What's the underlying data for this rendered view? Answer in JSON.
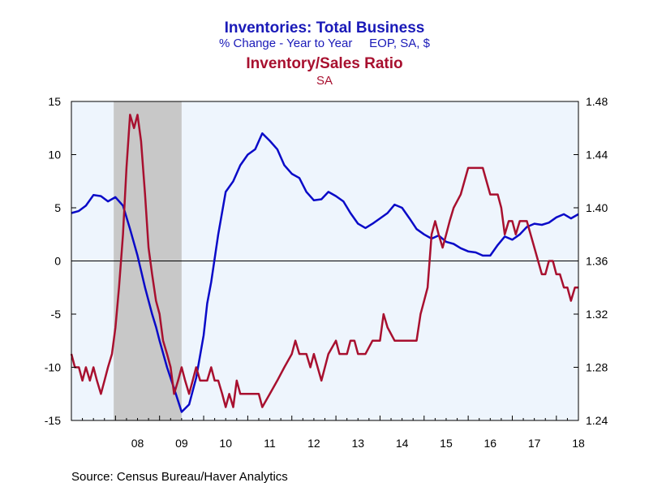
{
  "chart_data": {
    "type": "line",
    "titles": [
      {
        "text": "Inventories: Total Business",
        "color": "#1a1ab8"
      },
      {
        "text": "% Change - Year to Year     EOP, SA, $",
        "color": "#1a1ab8"
      },
      {
        "text": "Inventory/Sales Ratio",
        "color": "#a8102f"
      },
      {
        "text": "SA",
        "color": "#a8102f"
      }
    ],
    "source": "Source:  Census Bureau/Haver Analytics",
    "x_range": [
      2007.0,
      2018.5
    ],
    "x_tick_labels": [
      "08",
      "09",
      "10",
      "11",
      "12",
      "13",
      "14",
      "15",
      "16",
      "17",
      "18"
    ],
    "x_tick_positions": [
      2008.5,
      2009.5,
      2010.5,
      2011.5,
      2012.5,
      2013.5,
      2014.5,
      2015.5,
      2016.5,
      2017.5,
      2018.5
    ],
    "y_left": {
      "min": -15,
      "max": 15,
      "ticks": [
        -15,
        -10,
        -5,
        0,
        5,
        10,
        15
      ],
      "labels": [
        "-15",
        "-10",
        "-5",
        "0",
        "5",
        "10",
        "15"
      ]
    },
    "y_right": {
      "min": 1.24,
      "max": 1.48,
      "ticks": [
        1.24,
        1.28,
        1.32,
        1.36,
        1.4,
        1.44,
        1.48
      ],
      "labels": [
        "1.24",
        "1.28",
        "1.32",
        "1.36",
        "1.40",
        "1.44",
        "1.48"
      ]
    },
    "recession": {
      "start": 2007.96,
      "end": 2009.5,
      "color": "#c8c8c8"
    },
    "plot_bg": "#eef5fd",
    "zero_line": 0,
    "series": [
      {
        "name": "Inventories: Total Business",
        "axis": "left",
        "color": "#0a0ac8",
        "x": [
          2007.0,
          2007.17,
          2007.33,
          2007.5,
          2007.67,
          2007.83,
          2008.0,
          2008.17,
          2008.33,
          2008.5,
          2008.67,
          2008.83,
          2008.92,
          2009.0,
          2009.17,
          2009.33,
          2009.5,
          2009.67,
          2009.83,
          2010.0,
          2010.08,
          2010.17,
          2010.33,
          2010.5,
          2010.67,
          2010.83,
          2011.0,
          2011.17,
          2011.33,
          2011.5,
          2011.67,
          2011.83,
          2012.0,
          2012.17,
          2012.33,
          2012.5,
          2012.67,
          2012.83,
          2013.0,
          2013.17,
          2013.33,
          2013.5,
          2013.67,
          2013.83,
          2014.0,
          2014.17,
          2014.33,
          2014.5,
          2014.67,
          2014.83,
          2015.0,
          2015.17,
          2015.33,
          2015.5,
          2015.67,
          2015.83,
          2016.0,
          2016.17,
          2016.33,
          2016.5,
          2016.67,
          2016.83,
          2017.0,
          2017.17,
          2017.33,
          2017.5,
          2017.67,
          2017.83,
          2018.0,
          2018.17,
          2018.33,
          2018.5
        ],
        "values": [
          4.5,
          4.7,
          5.2,
          6.2,
          6.1,
          5.6,
          6.0,
          5.2,
          3.0,
          0.5,
          -2.5,
          -5.0,
          -6.2,
          -7.5,
          -10.0,
          -12.0,
          -14.2,
          -13.5,
          -11.0,
          -7.0,
          -4.0,
          -2.0,
          2.5,
          6.5,
          7.5,
          9.0,
          10.0,
          10.5,
          12.0,
          11.3,
          10.5,
          9.0,
          8.2,
          7.8,
          6.5,
          5.7,
          5.8,
          6.5,
          6.1,
          5.6,
          4.5,
          3.5,
          3.1,
          3.5,
          4.0,
          4.5,
          5.3,
          5.0,
          4.0,
          3.0,
          2.5,
          2.1,
          2.4,
          1.8,
          1.6,
          1.2,
          0.9,
          0.8,
          0.5,
          0.5,
          1.5,
          2.3,
          2.0,
          2.5,
          3.2,
          3.5,
          3.4,
          3.6,
          4.1,
          4.4,
          4.0,
          4.4
        ]
      },
      {
        "name": "Inventory/Sales Ratio",
        "axis": "right",
        "color": "#a8102f",
        "x": [
          2007.0,
          2007.08,
          2007.17,
          2007.25,
          2007.33,
          2007.42,
          2007.5,
          2007.58,
          2007.67,
          2007.75,
          2007.83,
          2007.92,
          2008.0,
          2008.08,
          2008.17,
          2008.25,
          2008.33,
          2008.42,
          2008.5,
          2008.58,
          2008.67,
          2008.75,
          2008.83,
          2008.92,
          2009.0,
          2009.08,
          2009.17,
          2009.25,
          2009.33,
          2009.42,
          2009.5,
          2009.58,
          2009.67,
          2009.75,
          2009.83,
          2009.92,
          2010.0,
          2010.08,
          2010.17,
          2010.25,
          2010.33,
          2010.42,
          2010.5,
          2010.58,
          2010.67,
          2010.75,
          2010.83,
          2010.92,
          2011.0,
          2011.08,
          2011.17,
          2011.25,
          2011.33,
          2011.5,
          2011.67,
          2011.83,
          2012.0,
          2012.08,
          2012.17,
          2012.25,
          2012.33,
          2012.42,
          2012.5,
          2012.67,
          2012.83,
          2013.0,
          2013.08,
          2013.17,
          2013.25,
          2013.33,
          2013.42,
          2013.5,
          2013.67,
          2013.83,
          2014.0,
          2014.08,
          2014.17,
          2014.33,
          2014.5,
          2014.67,
          2014.83,
          2014.92,
          2015.0,
          2015.08,
          2015.17,
          2015.25,
          2015.33,
          2015.42,
          2015.5,
          2015.58,
          2015.67,
          2015.83,
          2016.0,
          2016.17,
          2016.33,
          2016.5,
          2016.58,
          2016.67,
          2016.75,
          2016.83,
          2016.92,
          2017.0,
          2017.08,
          2017.17,
          2017.33,
          2017.5,
          2017.67,
          2017.75,
          2017.83,
          2017.92,
          2018.0,
          2018.08,
          2018.17,
          2018.25,
          2018.33,
          2018.42,
          2018.5
        ],
        "values": [
          1.29,
          1.28,
          1.28,
          1.27,
          1.28,
          1.27,
          1.28,
          1.27,
          1.26,
          1.27,
          1.28,
          1.29,
          1.31,
          1.34,
          1.38,
          1.43,
          1.47,
          1.46,
          1.47,
          1.45,
          1.41,
          1.37,
          1.35,
          1.33,
          1.32,
          1.3,
          1.29,
          1.28,
          1.26,
          1.27,
          1.28,
          1.27,
          1.26,
          1.27,
          1.28,
          1.27,
          1.27,
          1.27,
          1.28,
          1.27,
          1.27,
          1.26,
          1.25,
          1.26,
          1.25,
          1.27,
          1.26,
          1.26,
          1.26,
          1.26,
          1.26,
          1.26,
          1.25,
          1.26,
          1.27,
          1.28,
          1.29,
          1.3,
          1.29,
          1.29,
          1.29,
          1.28,
          1.29,
          1.27,
          1.29,
          1.3,
          1.29,
          1.29,
          1.29,
          1.3,
          1.3,
          1.29,
          1.29,
          1.3,
          1.3,
          1.32,
          1.31,
          1.3,
          1.3,
          1.3,
          1.3,
          1.32,
          1.33,
          1.34,
          1.38,
          1.39,
          1.38,
          1.37,
          1.38,
          1.39,
          1.4,
          1.41,
          1.43,
          1.43,
          1.43,
          1.41,
          1.41,
          1.41,
          1.4,
          1.38,
          1.39,
          1.39,
          1.38,
          1.39,
          1.39,
          1.37,
          1.35,
          1.35,
          1.36,
          1.36,
          1.35,
          1.35,
          1.34,
          1.34,
          1.33,
          1.34,
          1.34
        ]
      }
    ]
  }
}
